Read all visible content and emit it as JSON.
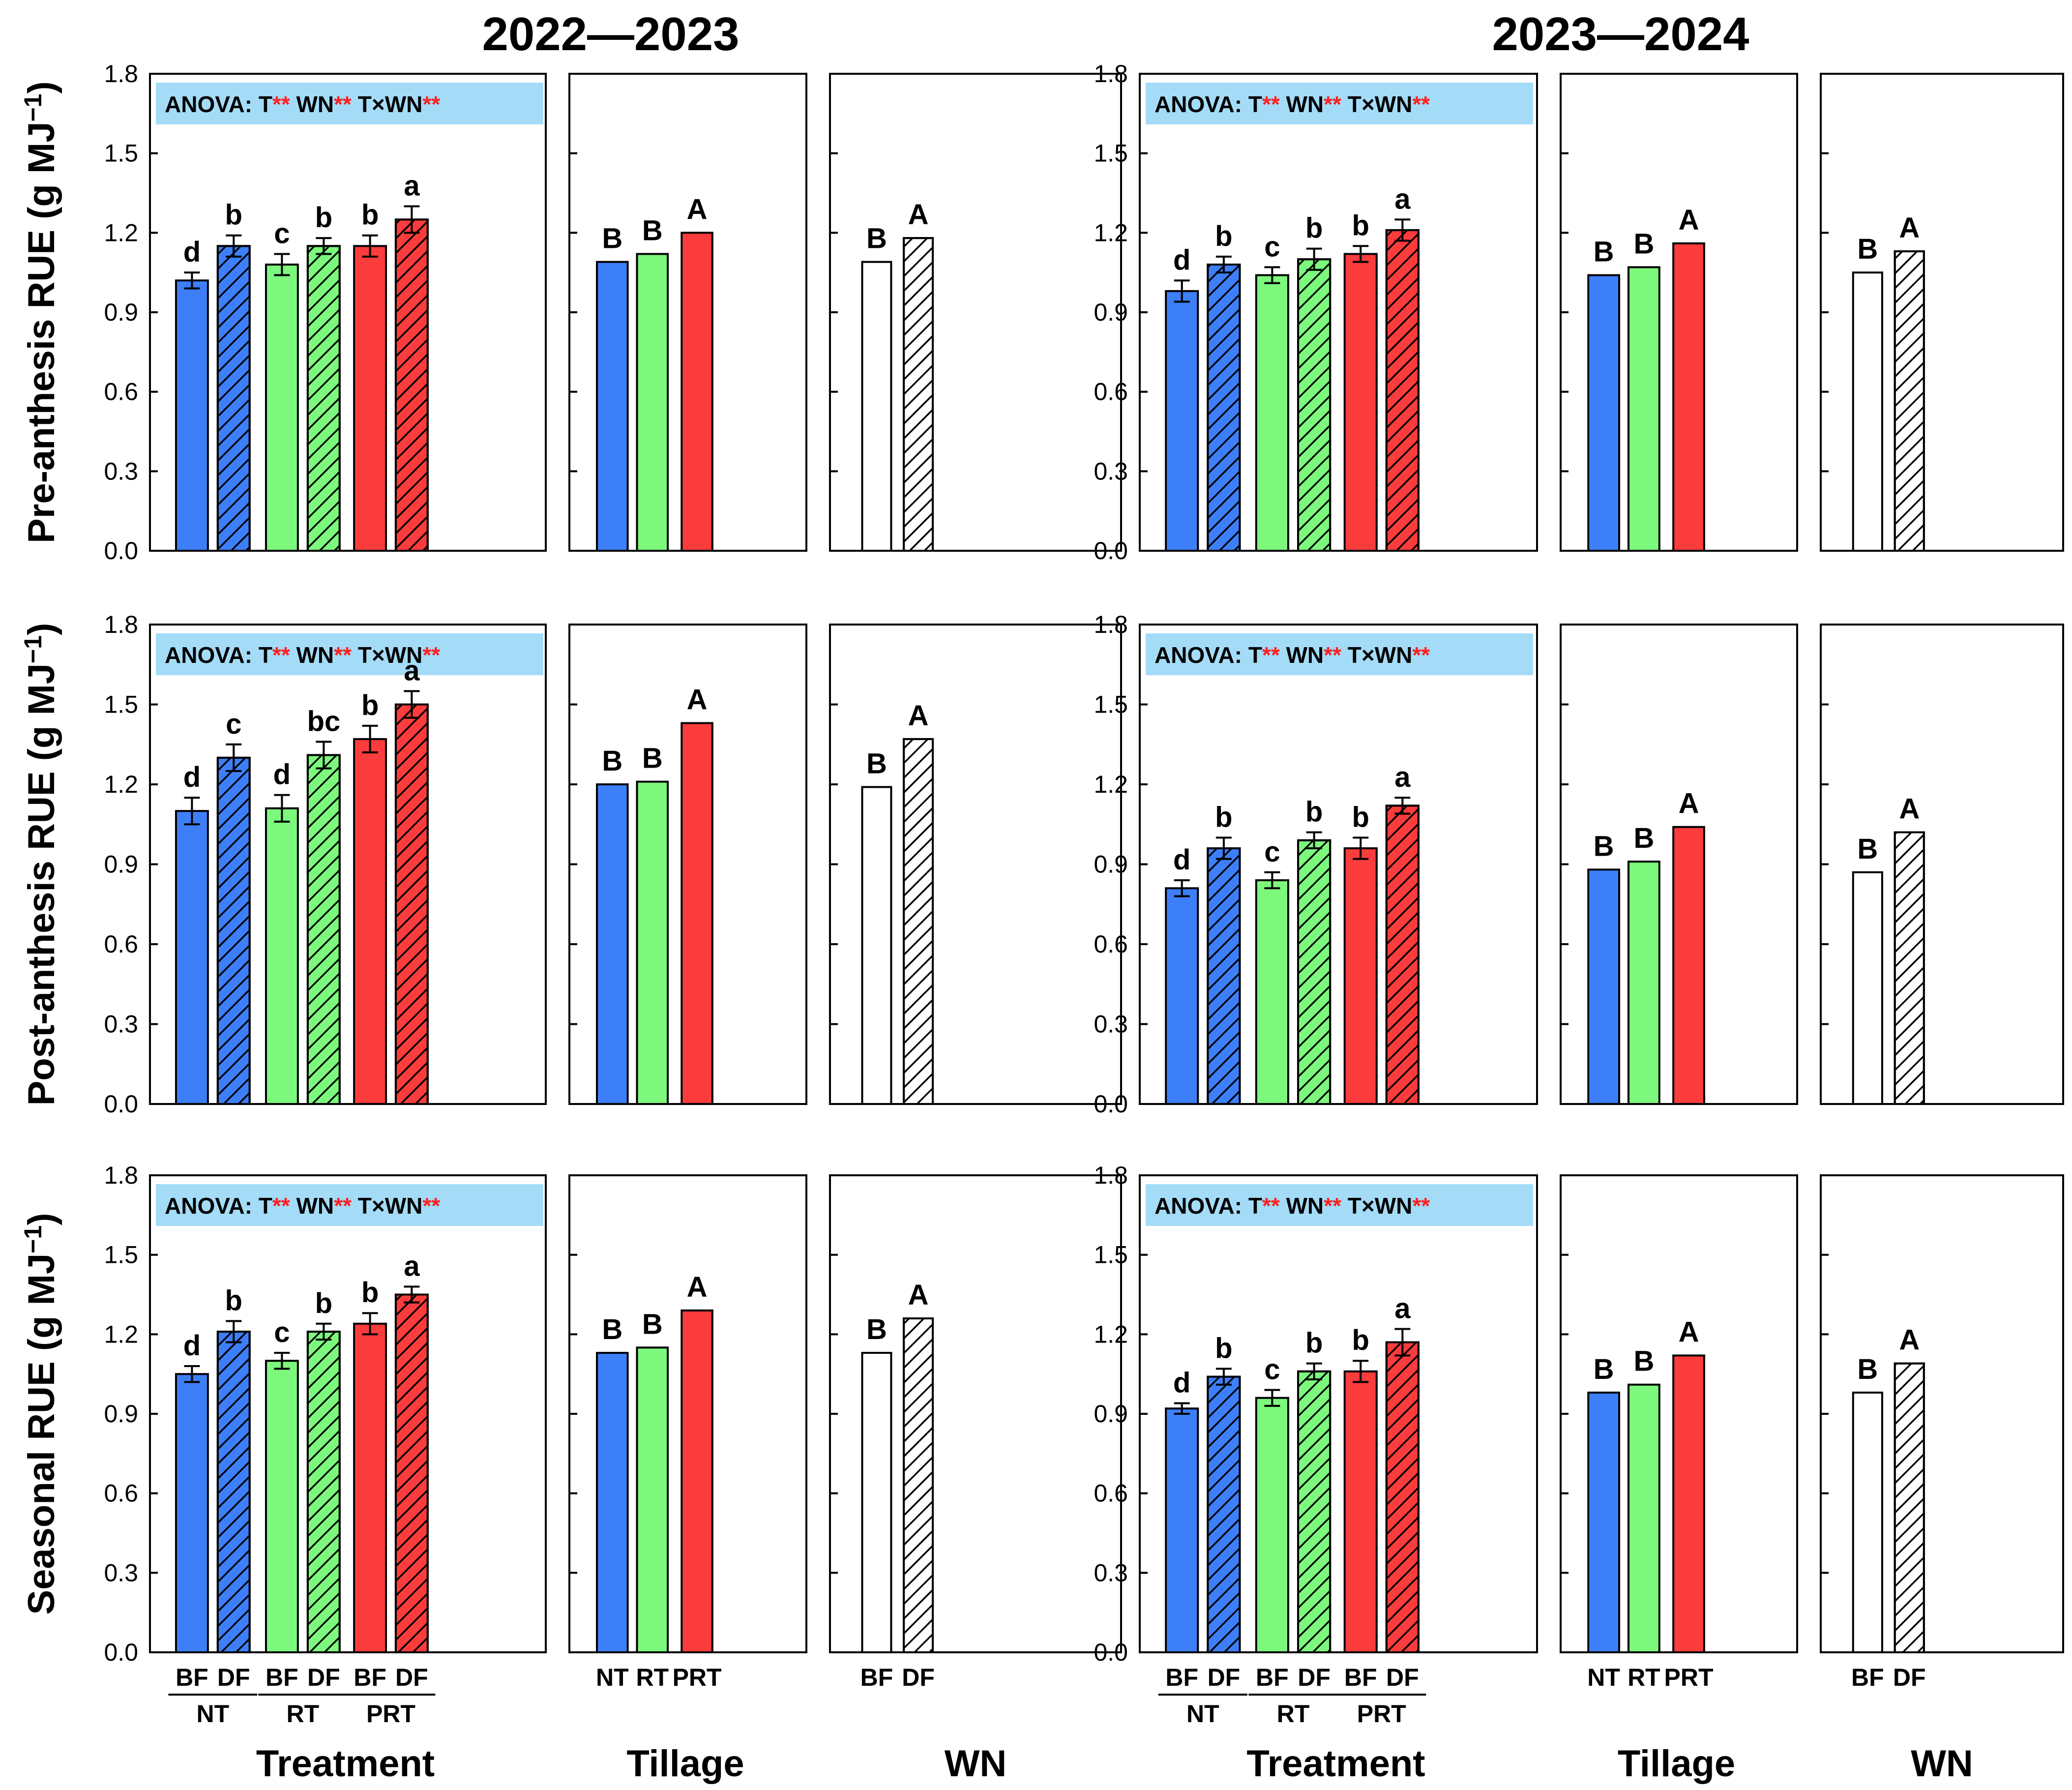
{
  "seasons": [
    "2022—2023",
    "2023—2024"
  ],
  "y_axis": {
    "min": 0,
    "max": 1.8,
    "ticks": [
      "0.0",
      "0.3",
      "0.6",
      "0.9",
      "1.2",
      "1.5",
      "1.8"
    ]
  },
  "row_titles": [
    "Pre-anthesis RUE (g MJ",
    "Post-anthesis RUE (g MJ",
    "Seasonal RUE (g MJ"
  ],
  "unit_superscript": "−1",
  "unit_close": ")",
  "x_titles": {
    "treatment": "Treatment",
    "tillage": "Tillage",
    "wn": "WN"
  },
  "treatment_labels": {
    "fert": [
      "BF",
      "DF"
    ],
    "tillage": [
      "NT",
      "RT",
      "PRT"
    ]
  },
  "tillage_labels": [
    "NT",
    "RT",
    "PRT"
  ],
  "wn_labels": [
    "BF",
    "DF"
  ],
  "anova": {
    "prefix": "ANOVA:",
    "terms": [
      "T",
      "WN",
      "T×WN"
    ],
    "sig": "**"
  },
  "colors": {
    "NT": "#3d7ff8",
    "RT": "#7cf87c",
    "PRT": "#fa3c3c",
    "WN": "#ffffff",
    "box": "#a4dcf8",
    "star": "#ff2020"
  },
  "chart_data": [
    {
      "type": "bar",
      "season": "2022—2023",
      "metric": "Pre-anthesis RUE",
      "treatment": {
        "categories": [
          "NT-BF",
          "NT-DF",
          "RT-BF",
          "RT-DF",
          "PRT-BF",
          "PRT-DF"
        ],
        "values": [
          1.02,
          1.15,
          1.08,
          1.15,
          1.15,
          1.25
        ],
        "errors": [
          0.03,
          0.04,
          0.04,
          0.03,
          0.04,
          0.05
        ],
        "letters": [
          "d",
          "b",
          "c",
          "b",
          "b",
          "a"
        ]
      },
      "tillage": {
        "categories": [
          "NT",
          "RT",
          "PRT"
        ],
        "values": [
          1.09,
          1.12,
          1.2
        ],
        "letters": [
          "B",
          "B",
          "A"
        ]
      },
      "wn": {
        "categories": [
          "BF",
          "DF"
        ],
        "values": [
          1.09,
          1.18
        ],
        "letters": [
          "B",
          "A"
        ]
      }
    },
    {
      "type": "bar",
      "season": "2023—2024",
      "metric": "Pre-anthesis RUE",
      "treatment": {
        "categories": [
          "NT-BF",
          "NT-DF",
          "RT-BF",
          "RT-DF",
          "PRT-BF",
          "PRT-DF"
        ],
        "values": [
          0.98,
          1.08,
          1.04,
          1.1,
          1.12,
          1.21
        ],
        "errors": [
          0.04,
          0.03,
          0.03,
          0.04,
          0.03,
          0.04
        ],
        "letters": [
          "d",
          "b",
          "c",
          "b",
          "b",
          "a"
        ]
      },
      "tillage": {
        "categories": [
          "NT",
          "RT",
          "PRT"
        ],
        "values": [
          1.04,
          1.07,
          1.16
        ],
        "letters": [
          "B",
          "B",
          "A"
        ]
      },
      "wn": {
        "categories": [
          "BF",
          "DF"
        ],
        "values": [
          1.05,
          1.13
        ],
        "letters": [
          "B",
          "A"
        ]
      }
    },
    {
      "type": "bar",
      "season": "2022—2023",
      "metric": "Post-anthesis RUE",
      "treatment": {
        "categories": [
          "NT-BF",
          "NT-DF",
          "RT-BF",
          "RT-DF",
          "PRT-BF",
          "PRT-DF"
        ],
        "values": [
          1.1,
          1.3,
          1.11,
          1.31,
          1.37,
          1.5
        ],
        "errors": [
          0.05,
          0.05,
          0.05,
          0.05,
          0.05,
          0.05
        ],
        "letters": [
          "d",
          "c",
          "d",
          "bc",
          "b",
          "a"
        ]
      },
      "tillage": {
        "categories": [
          "NT",
          "RT",
          "PRT"
        ],
        "values": [
          1.2,
          1.21,
          1.43
        ],
        "letters": [
          "B",
          "B",
          "A"
        ]
      },
      "wn": {
        "categories": [
          "BF",
          "DF"
        ],
        "values": [
          1.19,
          1.37
        ],
        "letters": [
          "B",
          "A"
        ]
      }
    },
    {
      "type": "bar",
      "season": "2023—2024",
      "metric": "Post-anthesis RUE",
      "treatment": {
        "categories": [
          "NT-BF",
          "NT-DF",
          "RT-BF",
          "RT-DF",
          "PRT-BF",
          "PRT-DF"
        ],
        "values": [
          0.81,
          0.96,
          0.84,
          0.99,
          0.96,
          1.12
        ],
        "errors": [
          0.03,
          0.04,
          0.03,
          0.03,
          0.04,
          0.03
        ],
        "letters": [
          "d",
          "b",
          "c",
          "b",
          "b",
          "a"
        ]
      },
      "tillage": {
        "categories": [
          "NT",
          "RT",
          "PRT"
        ],
        "values": [
          0.88,
          0.91,
          1.04
        ],
        "letters": [
          "B",
          "B",
          "A"
        ]
      },
      "wn": {
        "categories": [
          "BF",
          "DF"
        ],
        "values": [
          0.87,
          1.02
        ],
        "letters": [
          "B",
          "A"
        ]
      }
    },
    {
      "type": "bar",
      "season": "2022—2023",
      "metric": "Seasonal RUE",
      "treatment": {
        "categories": [
          "NT-BF",
          "NT-DF",
          "RT-BF",
          "RT-DF",
          "PRT-BF",
          "PRT-DF"
        ],
        "values": [
          1.05,
          1.21,
          1.1,
          1.21,
          1.24,
          1.35
        ],
        "errors": [
          0.03,
          0.04,
          0.03,
          0.03,
          0.04,
          0.03
        ],
        "letters": [
          "d",
          "b",
          "c",
          "b",
          "b",
          "a"
        ]
      },
      "tillage": {
        "categories": [
          "NT",
          "RT",
          "PRT"
        ],
        "values": [
          1.13,
          1.15,
          1.29
        ],
        "letters": [
          "B",
          "B",
          "A"
        ]
      },
      "wn": {
        "categories": [
          "BF",
          "DF"
        ],
        "values": [
          1.13,
          1.26
        ],
        "letters": [
          "B",
          "A"
        ]
      }
    },
    {
      "type": "bar",
      "season": "2023—2024",
      "metric": "Seasonal RUE",
      "treatment": {
        "categories": [
          "NT-BF",
          "NT-DF",
          "RT-BF",
          "RT-DF",
          "PRT-BF",
          "PRT-DF"
        ],
        "values": [
          0.92,
          1.04,
          0.96,
          1.06,
          1.06,
          1.17
        ],
        "errors": [
          0.02,
          0.03,
          0.03,
          0.03,
          0.04,
          0.05
        ],
        "letters": [
          "d",
          "b",
          "c",
          "b",
          "b",
          "a"
        ]
      },
      "tillage": {
        "categories": [
          "NT",
          "RT",
          "PRT"
        ],
        "values": [
          0.98,
          1.01,
          1.12
        ],
        "letters": [
          "B",
          "B",
          "A"
        ]
      },
      "wn": {
        "categories": [
          "BF",
          "DF"
        ],
        "values": [
          0.98,
          1.09
        ],
        "letters": [
          "B",
          "A"
        ]
      }
    }
  ]
}
